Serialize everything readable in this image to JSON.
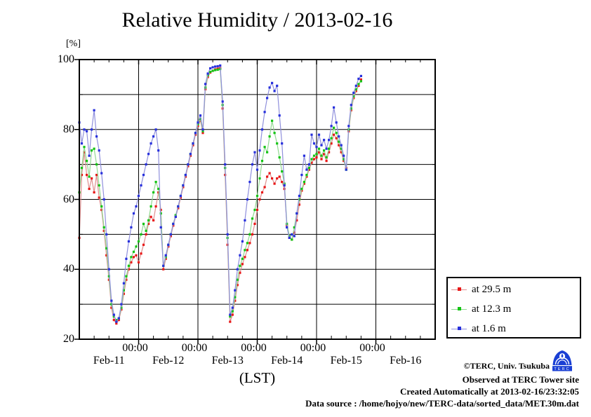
{
  "chart_data": {
    "type": "line",
    "title": "Relative Humidity / 2013-02-16",
    "y_unit_label": "[%]",
    "xlabel": "(LST)",
    "ylim": [
      20,
      100
    ],
    "y_major_ticks": [
      100,
      80,
      60,
      40,
      20
    ],
    "y_grid_step": 10,
    "x_total_hours": 144,
    "x_midnight_label": "00:00",
    "x_day_labels": [
      "Feb-11",
      "Feb-12",
      "Feb-13",
      "Feb-14",
      "Feb-15",
      "Feb-16"
    ],
    "grid": true,
    "legend_position": "outside-right",
    "sample_step_hours": 1,
    "x_start": "Feb-11 00:00",
    "series": [
      {
        "name": "at 29.5 m",
        "marker_color": "#e81818",
        "line_color": "#e09090",
        "values": [
          49,
          67,
          73.5,
          67,
          63,
          66,
          62,
          67,
          60.5,
          57,
          51,
          44,
          37,
          29,
          25.5,
          24.5,
          25.5,
          28.5,
          33,
          37,
          40,
          42,
          43.5,
          44,
          42,
          44.5,
          47,
          50,
          53,
          55,
          54,
          58,
          62,
          57,
          40,
          43,
          46.5,
          49.5,
          52.5,
          55,
          57.5,
          60.5,
          63.5,
          66.5,
          69.5,
          72.5,
          75.5,
          78.5,
          81,
          82.5,
          79,
          91.5,
          95,
          96.3,
          96.8,
          97.2,
          97.4,
          97.6,
          86,
          67,
          47,
          25,
          27,
          31,
          35.5,
          39,
          41.5,
          43.5,
          45.5,
          47.5,
          50,
          53,
          57,
          60,
          62,
          63.5,
          66.5,
          67.5,
          66,
          64.5,
          66,
          66.5,
          65,
          63,
          52.5,
          49,
          48.5,
          50.5,
          54,
          58.5,
          62.5,
          64.5,
          66.5,
          68.5,
          70.5,
          71.5,
          72,
          73.5,
          71.5,
          73,
          71,
          73.5,
          76,
          78.5,
          77.5,
          75.5,
          73.5,
          71,
          69,
          79.5,
          85.5,
          89,
          91,
          92.5,
          94.3
        ]
      },
      {
        "name": "at 12.3 m",
        "marker_color": "#15c415",
        "line_color": "#92d892",
        "values": [
          62,
          69,
          75,
          71,
          66.5,
          74,
          74.5,
          70,
          64,
          58,
          52,
          46,
          38,
          30,
          26.5,
          25.5,
          26,
          29,
          34,
          38,
          41,
          43.5,
          45,
          46.5,
          48,
          50,
          53,
          51,
          54,
          58,
          62,
          65,
          63,
          56,
          41,
          43.5,
          47,
          50,
          53,
          55.5,
          58,
          61,
          64,
          67,
          70,
          73,
          76,
          79,
          81.5,
          83,
          79.5,
          92,
          95.5,
          96.5,
          96.8,
          97,
          97.1,
          97.3,
          87,
          69,
          49,
          26.5,
          28,
          32,
          37,
          41,
          43,
          45.5,
          47.5,
          50,
          54.5,
          57,
          61,
          66,
          71,
          75,
          73.5,
          78,
          82.5,
          79,
          76,
          72,
          68,
          64.5,
          53,
          49.5,
          48.5,
          52,
          56,
          60,
          63,
          65,
          67,
          69,
          71.5,
          72.5,
          73,
          74.5,
          72.5,
          74,
          72,
          74.5,
          77.5,
          80.5,
          79,
          76.5,
          74.5,
          71.5,
          68.5,
          80,
          86,
          89.5,
          91.5,
          93,
          93.8
        ]
      },
      {
        "name": "at 1.6 m",
        "marker_color": "#2730dd",
        "line_color": "#9090dc",
        "values": [
          82,
          76,
          80,
          79.5,
          72.5,
          80,
          85.5,
          78,
          74,
          67.5,
          60,
          50,
          40,
          31,
          27,
          25,
          26,
          30,
          36,
          43,
          48,
          52,
          56,
          58,
          61,
          64,
          67,
          70,
          73,
          76,
          78,
          80,
          74,
          52,
          41,
          44,
          47,
          50,
          53,
          55,
          58,
          61,
          64,
          67,
          70,
          73,
          76,
          79,
          82,
          84,
          80,
          93,
          96,
          97.5,
          97.8,
          98,
          98.1,
          98.3,
          88,
          70,
          50,
          27,
          29,
          34,
          40,
          44,
          48,
          54,
          60,
          65,
          70,
          73.5,
          68.5,
          74,
          80,
          85,
          89,
          92,
          93.3,
          91,
          92.5,
          84,
          76,
          64,
          52,
          49,
          50,
          49.5,
          56,
          61,
          67,
          72.5,
          68.5,
          70,
          78.5,
          76,
          75,
          78.5,
          75.5,
          77,
          74.5,
          77,
          81,
          86.3,
          82,
          78,
          75.5,
          72.5,
          68.5,
          81,
          87,
          90.5,
          92.5,
          94.5,
          95.3
        ]
      }
    ]
  },
  "footer": {
    "lines": [
      "©TERC, Univ. Tsukuba",
      "Observed at TERC Tower site",
      "Created Automatically at 2013-02-16/23:32:05",
      "Data source : /home/hojyo/new/TERC-data/sorted_data/MET.30m.dat"
    ]
  },
  "logo": {
    "text": "TERC"
  }
}
